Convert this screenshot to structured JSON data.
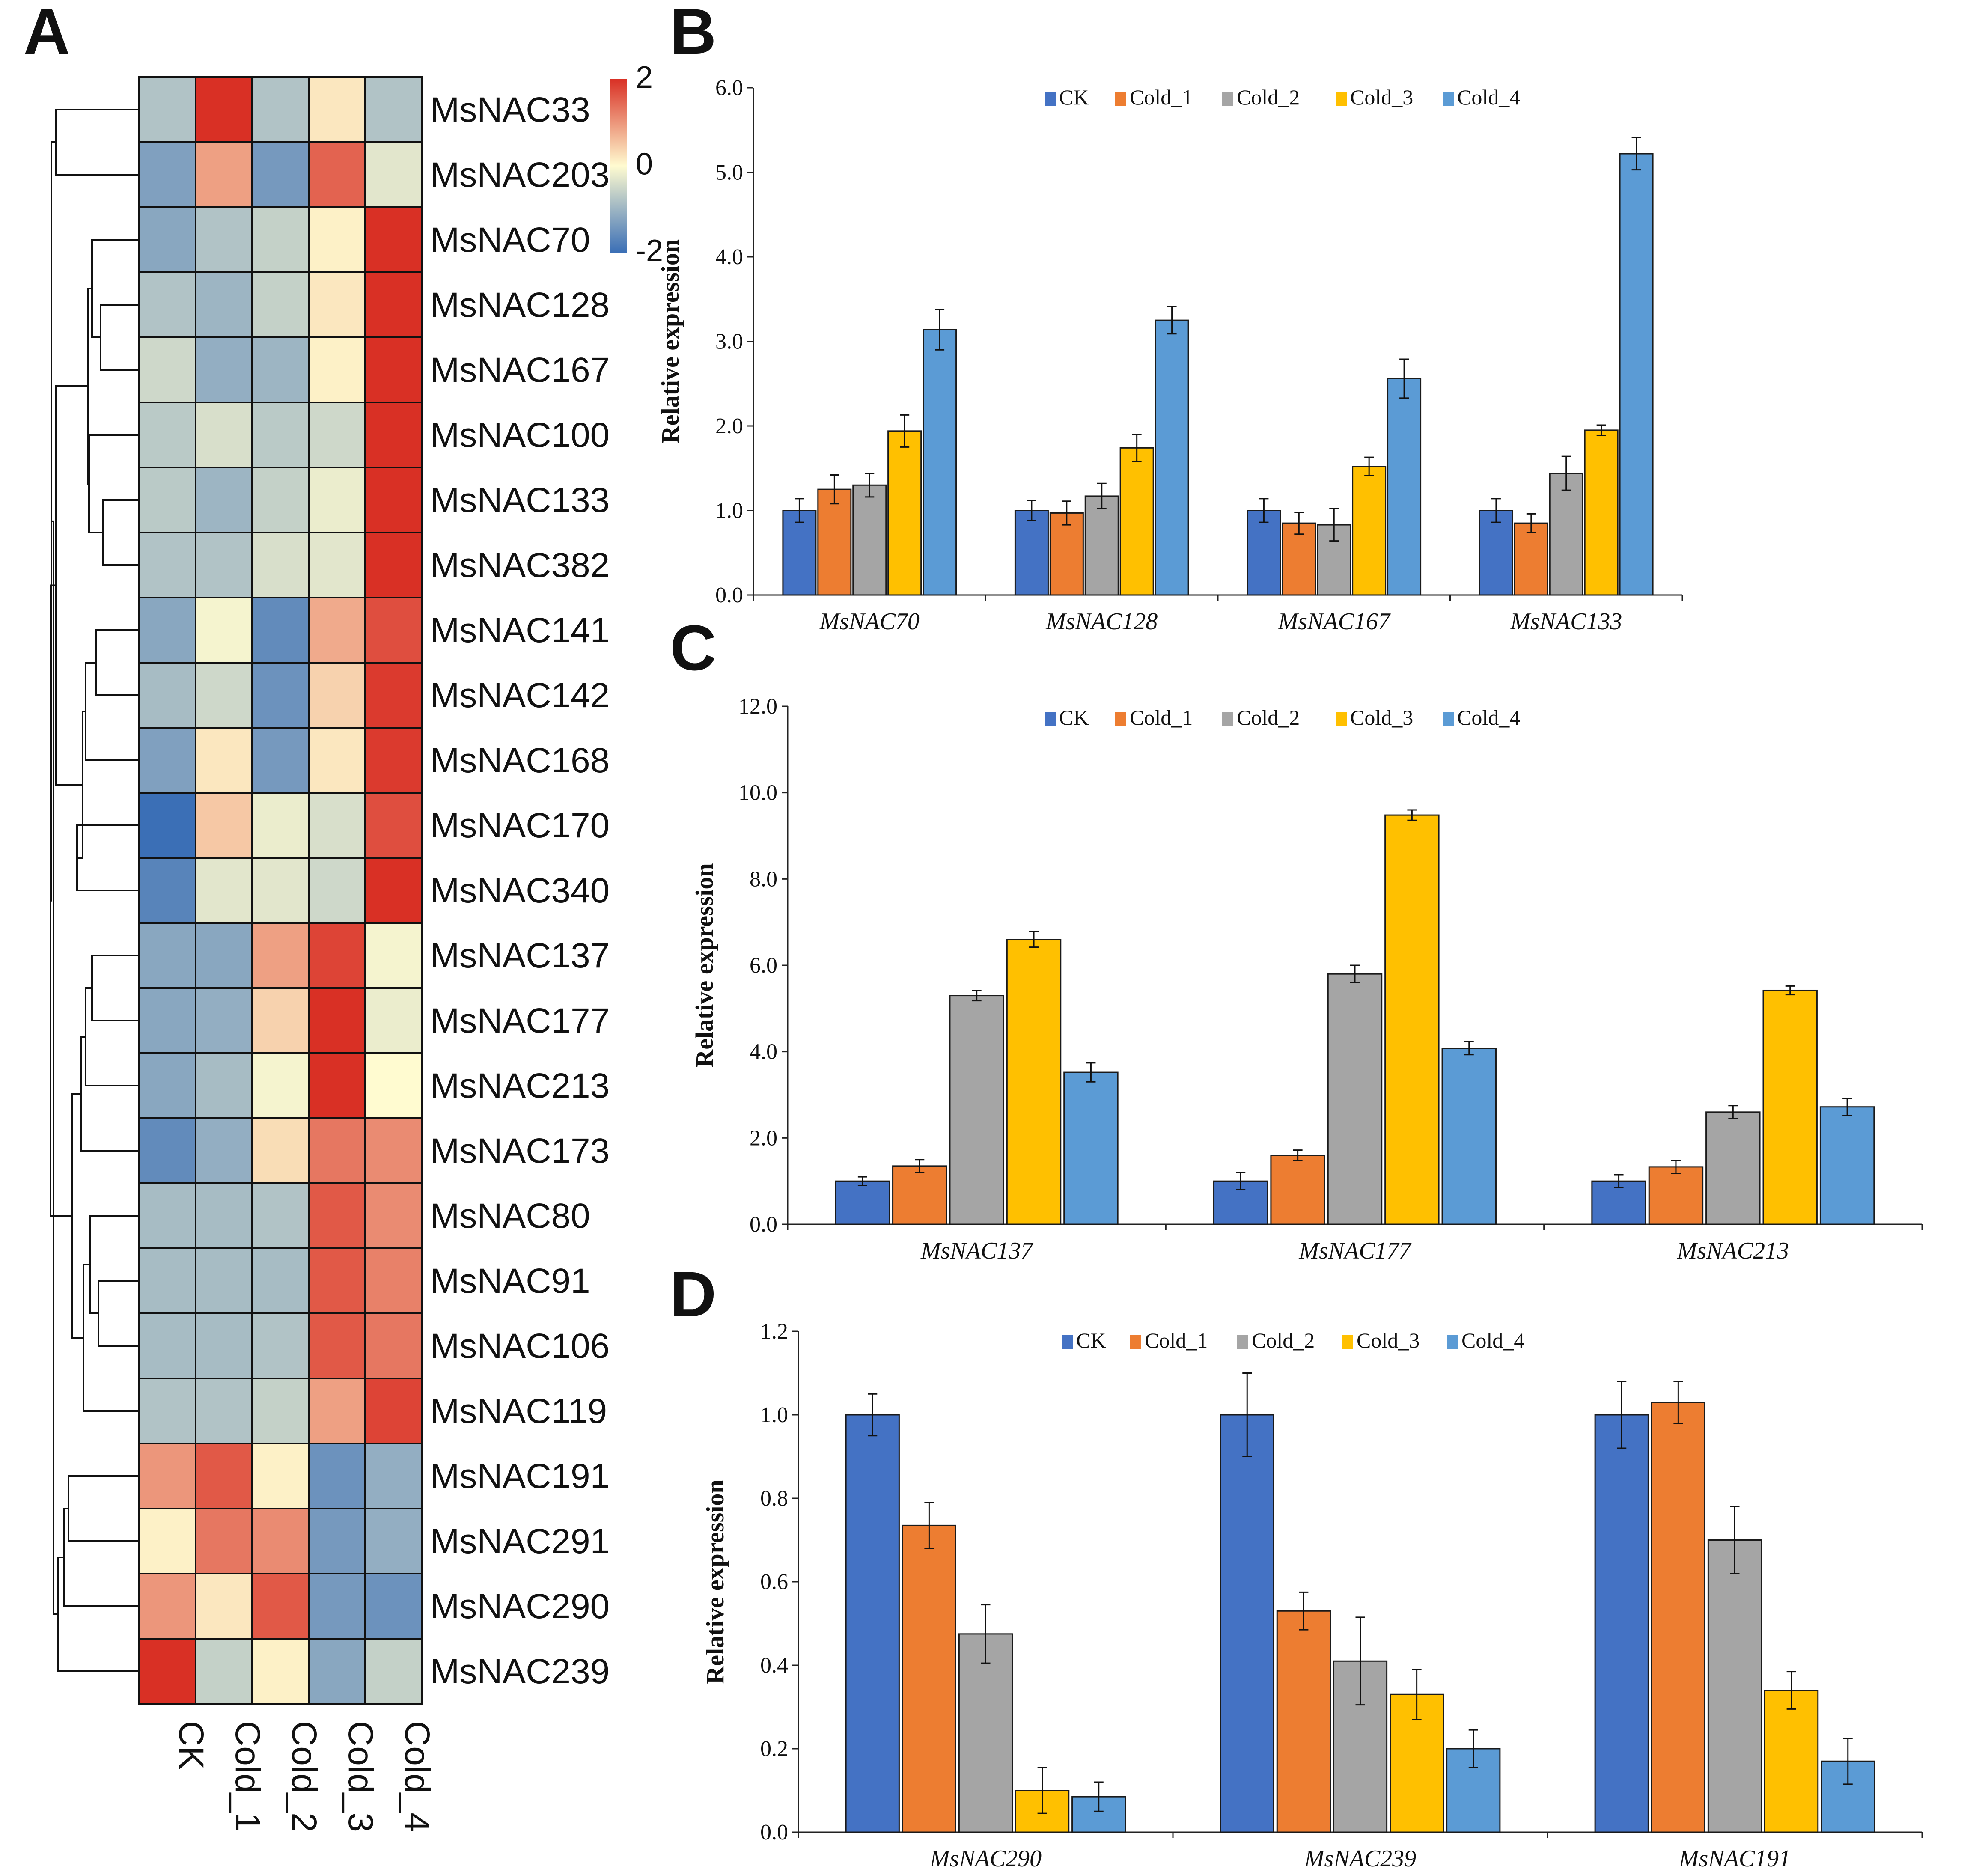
{
  "panel_letters": {
    "a": "A",
    "b": "B",
    "c": "C",
    "d": "D"
  },
  "series_names": [
    "CK",
    "Cold_1",
    "Cold_2",
    "Cold_3",
    "Cold_4"
  ],
  "series_colors": [
    "#4472C4",
    "#ED7D31",
    "#A5A5A5",
    "#FFC000",
    "#5B9BD5"
  ],
  "chart_data": [
    {
      "panel": "A",
      "type": "heatmap",
      "columns": [
        "CK",
        "Cold_1",
        "Cold_2",
        "Cold_3",
        "Cold_4"
      ],
      "rows": [
        "MsNAC33",
        "MsNAC203",
        "MsNAC70",
        "MsNAC128",
        "MsNAC167",
        "MsNAC100",
        "MsNAC133",
        "MsNAC382",
        "MsNAC141",
        "MsNAC142",
        "MsNAC168",
        "MsNAC170",
        "MsNAC340",
        "MsNAC137",
        "MsNAC177",
        "MsNAC213",
        "MsNAC173",
        "MsNAC80",
        "MsNAC91",
        "MsNAC106",
        "MsNAC119",
        "MsNAC191",
        "MsNAC291",
        "MsNAC290",
        "MsNAC239"
      ],
      "values": [
        [
          -0.8,
          2.2,
          -0.8,
          0.2,
          -0.8
        ],
        [
          -1.3,
          0.9,
          -1.4,
          1.5,
          -0.3
        ],
        [
          -1.2,
          -0.8,
          -0.6,
          0.1,
          2.3
        ],
        [
          -0.8,
          -1.0,
          -0.6,
          0.2,
          2.3
        ],
        [
          -0.5,
          -1.1,
          -1.0,
          0.1,
          2.3
        ],
        [
          -0.7,
          -0.4,
          -0.7,
          -0.5,
          2.4
        ],
        [
          -0.7,
          -1.0,
          -0.6,
          -0.2,
          2.4
        ],
        [
          -0.8,
          -0.8,
          -0.4,
          -0.3,
          2.4
        ],
        [
          -1.2,
          -0.1,
          -1.6,
          0.8,
          1.7
        ],
        [
          -0.9,
          -0.5,
          -1.5,
          0.4,
          1.9
        ],
        [
          -1.3,
          0.2,
          -1.4,
          0.2,
          1.9
        ],
        [
          -2.4,
          0.5,
          -0.2,
          -0.4,
          1.7
        ],
        [
          -1.7,
          -0.3,
          -0.3,
          -0.5,
          2.1
        ],
        [
          -1.2,
          -1.2,
          0.9,
          1.8,
          -0.1
        ],
        [
          -1.2,
          -1.1,
          0.4,
          2.0,
          -0.2
        ],
        [
          -1.2,
          -0.9,
          -0.1,
          2.2,
          0.0
        ],
        [
          -1.6,
          -1.1,
          0.3,
          1.3,
          1.1
        ],
        [
          -0.9,
          -0.9,
          -0.8,
          1.6,
          1.1
        ],
        [
          -0.9,
          -0.9,
          -0.9,
          1.6,
          1.2
        ],
        [
          -0.9,
          -0.9,
          -0.8,
          1.6,
          1.3
        ],
        [
          -0.8,
          -0.8,
          -0.6,
          0.9,
          1.8
        ],
        [
          1.0,
          1.6,
          0.1,
          -1.5,
          -1.1
        ],
        [
          0.1,
          1.3,
          1.1,
          -1.4,
          -1.1
        ],
        [
          1.0,
          0.2,
          1.6,
          -1.4,
          -1.5
        ],
        [
          2.3,
          -0.6,
          0.1,
          -1.2,
          -0.6
        ]
      ],
      "color_scale": {
        "min": -2,
        "mid": 0,
        "max": 2,
        "ticks": [
          "2",
          "0",
          "-2"
        ],
        "low_color": "#3B6FB6",
        "mid_color": "#FFFBD0",
        "high_color": "#D93025"
      },
      "dendrogram": "row clustering tree on left"
    },
    {
      "panel": "B",
      "type": "bar",
      "ylabel": "Relative expression",
      "ylim": [
        0,
        6
      ],
      "yticks": [
        "0.0",
        "1.0",
        "2.0",
        "3.0",
        "4.0",
        "5.0",
        "6.0"
      ],
      "categories": [
        "MsNAC70",
        "MsNAC128",
        "MsNAC167",
        "MsNAC133"
      ],
      "series": [
        {
          "name": "CK",
          "values": [
            1.0,
            1.0,
            1.0,
            1.0
          ],
          "errors": [
            0.14,
            0.12,
            0.14,
            0.14
          ]
        },
        {
          "name": "Cold_1",
          "values": [
            1.25,
            0.97,
            0.85,
            0.85
          ],
          "errors": [
            0.17,
            0.14,
            0.13,
            0.11
          ]
        },
        {
          "name": "Cold_2",
          "values": [
            1.3,
            1.17,
            0.83,
            1.44
          ],
          "errors": [
            0.14,
            0.15,
            0.19,
            0.2
          ]
        },
        {
          "name": "Cold_3",
          "values": [
            1.94,
            1.74,
            1.52,
            1.95
          ],
          "errors": [
            0.19,
            0.16,
            0.11,
            0.06
          ]
        },
        {
          "name": "Cold_4",
          "values": [
            3.14,
            3.25,
            2.56,
            5.22
          ],
          "errors": [
            0.24,
            0.16,
            0.23,
            0.19
          ]
        }
      ]
    },
    {
      "panel": "C",
      "type": "bar",
      "ylabel": "Relative expression",
      "ylim": [
        0,
        12
      ],
      "yticks": [
        "0.0",
        "2.0",
        "4.0",
        "6.0",
        "8.0",
        "10.0",
        "12.0"
      ],
      "categories": [
        "MsNAC137",
        "MsNAC177",
        "MsNAC213"
      ],
      "series": [
        {
          "name": "CK",
          "values": [
            1.0,
            1.0,
            1.0
          ],
          "errors": [
            0.1,
            0.2,
            0.15
          ]
        },
        {
          "name": "Cold_1",
          "values": [
            1.35,
            1.6,
            1.33
          ],
          "errors": [
            0.15,
            0.12,
            0.15
          ]
        },
        {
          "name": "Cold_2",
          "values": [
            5.3,
            5.8,
            2.6
          ],
          "errors": [
            0.12,
            0.2,
            0.15
          ]
        },
        {
          "name": "Cold_3",
          "values": [
            6.6,
            9.48,
            5.42
          ],
          "errors": [
            0.18,
            0.12,
            0.1
          ]
        },
        {
          "name": "Cold_4",
          "values": [
            3.52,
            4.08,
            2.72
          ],
          "errors": [
            0.22,
            0.15,
            0.2
          ]
        }
      ]
    },
    {
      "panel": "D",
      "type": "bar",
      "ylabel": "Relative expression",
      "ylim": [
        0,
        1.2
      ],
      "yticks": [
        "0.0",
        "0.2",
        "0.4",
        "0.6",
        "0.8",
        "1.0",
        "1.2"
      ],
      "categories": [
        "MsNAC290",
        "MsNAC239",
        "MsNAC191"
      ],
      "series": [
        {
          "name": "CK",
          "values": [
            1.0,
            1.0,
            1.0
          ],
          "errors": [
            0.05,
            0.1,
            0.08
          ]
        },
        {
          "name": "Cold_1",
          "values": [
            0.735,
            0.53,
            1.03
          ],
          "errors": [
            0.055,
            0.045,
            0.05
          ]
        },
        {
          "name": "Cold_2",
          "values": [
            0.475,
            0.41,
            0.7
          ],
          "errors": [
            0.07,
            0.105,
            0.08
          ]
        },
        {
          "name": "Cold_3",
          "values": [
            0.1,
            0.33,
            0.34
          ],
          "errors": [
            0.055,
            0.06,
            0.045
          ]
        },
        {
          "name": "Cold_4",
          "values": [
            0.085,
            0.2,
            0.17
          ],
          "errors": [
            0.035,
            0.045,
            0.055
          ]
        }
      ]
    }
  ]
}
